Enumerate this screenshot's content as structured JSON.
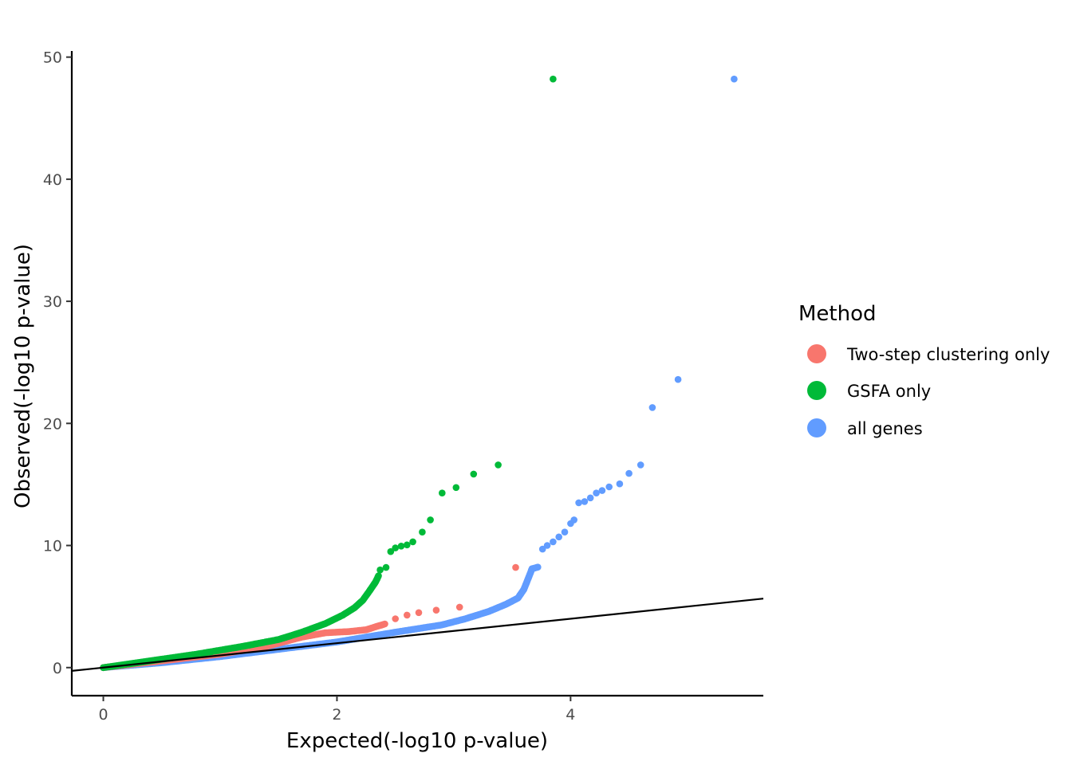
{
  "chart_data": {
    "type": "scatter",
    "title": "",
    "xlabel": "Expected(-log10 p-value)",
    "ylabel": "Observed(-log10 p-value)",
    "xlim": [
      -0.27,
      5.65
    ],
    "ylim": [
      -2.3,
      50.5
    ],
    "xticks": [
      0,
      2,
      4
    ],
    "yticks": [
      0,
      10,
      20,
      30,
      40,
      50
    ],
    "grid": false,
    "reference_line": {
      "slope": 1,
      "intercept": 0,
      "color": "#000000"
    },
    "legend": {
      "title": "Method",
      "placement": "right",
      "entries": [
        {
          "label": "Two-step clustering only",
          "color": "#F8766D"
        },
        {
          "label": "GSFA only",
          "color": "#00BA38"
        },
        {
          "label": "all genes",
          "color": "#619CFF"
        }
      ]
    },
    "series": [
      {
        "name": "GSFA only",
        "color": "#00BA38",
        "dense_curve": [
          [
            0,
            0
          ],
          [
            0.4,
            0.55
          ],
          [
            0.8,
            1.1
          ],
          [
            1.2,
            1.75
          ],
          [
            1.5,
            2.3
          ],
          [
            1.7,
            2.9
          ],
          [
            1.9,
            3.6
          ],
          [
            2.05,
            4.3
          ],
          [
            2.15,
            4.9
          ],
          [
            2.22,
            5.5
          ],
          [
            2.28,
            6.3
          ],
          [
            2.33,
            7.0
          ],
          [
            2.36,
            7.6
          ]
        ],
        "points": [
          [
            2.37,
            8.0
          ],
          [
            2.42,
            8.2
          ],
          [
            2.46,
            9.5
          ],
          [
            2.5,
            9.8
          ],
          [
            2.55,
            9.95
          ],
          [
            2.6,
            10.05
          ],
          [
            2.65,
            10.3
          ],
          [
            2.73,
            11.1
          ],
          [
            2.8,
            12.1
          ],
          [
            2.9,
            14.3
          ],
          [
            3.02,
            14.75
          ],
          [
            3.17,
            15.85
          ],
          [
            3.38,
            16.6
          ],
          [
            3.85,
            48.2
          ]
        ]
      },
      {
        "name": "Two-step clustering only",
        "color": "#F8766D",
        "dense_curve": [
          [
            0,
            0
          ],
          [
            0.5,
            0.55
          ],
          [
            1.0,
            1.1
          ],
          [
            1.4,
            1.75
          ],
          [
            1.7,
            2.5
          ],
          [
            1.9,
            2.85
          ],
          [
            2.1,
            2.95
          ],
          [
            2.25,
            3.1
          ],
          [
            2.35,
            3.4
          ],
          [
            2.42,
            3.6
          ]
        ],
        "points": [
          [
            2.5,
            4.0
          ],
          [
            2.6,
            4.3
          ],
          [
            2.7,
            4.5
          ],
          [
            2.85,
            4.7
          ],
          [
            3.05,
            4.95
          ],
          [
            3.53,
            8.2
          ]
        ]
      },
      {
        "name": "all genes",
        "color": "#619CFF",
        "dense_curve": [
          [
            0,
            0
          ],
          [
            0.5,
            0.4
          ],
          [
            1.0,
            0.9
          ],
          [
            1.5,
            1.5
          ],
          [
            2.0,
            2.1
          ],
          [
            2.5,
            2.9
          ],
          [
            2.9,
            3.5
          ],
          [
            3.1,
            4.0
          ],
          [
            3.3,
            4.6
          ],
          [
            3.45,
            5.2
          ],
          [
            3.55,
            5.7
          ],
          [
            3.6,
            6.4
          ],
          [
            3.65,
            7.6
          ],
          [
            3.67,
            8.1
          ],
          [
            3.73,
            8.25
          ]
        ],
        "points": [
          [
            3.76,
            9.7
          ],
          [
            3.8,
            10.0
          ],
          [
            3.85,
            10.3
          ],
          [
            3.9,
            10.7
          ],
          [
            3.95,
            11.1
          ],
          [
            4.0,
            11.8
          ],
          [
            4.03,
            12.1
          ],
          [
            4.07,
            13.5
          ],
          [
            4.12,
            13.6
          ],
          [
            4.17,
            13.9
          ],
          [
            4.22,
            14.3
          ],
          [
            4.27,
            14.5
          ],
          [
            4.33,
            14.8
          ],
          [
            4.42,
            15.05
          ],
          [
            4.5,
            15.9
          ],
          [
            4.6,
            16.6
          ],
          [
            4.7,
            21.3
          ],
          [
            4.92,
            23.6
          ],
          [
            5.4,
            48.2
          ]
        ]
      }
    ]
  }
}
